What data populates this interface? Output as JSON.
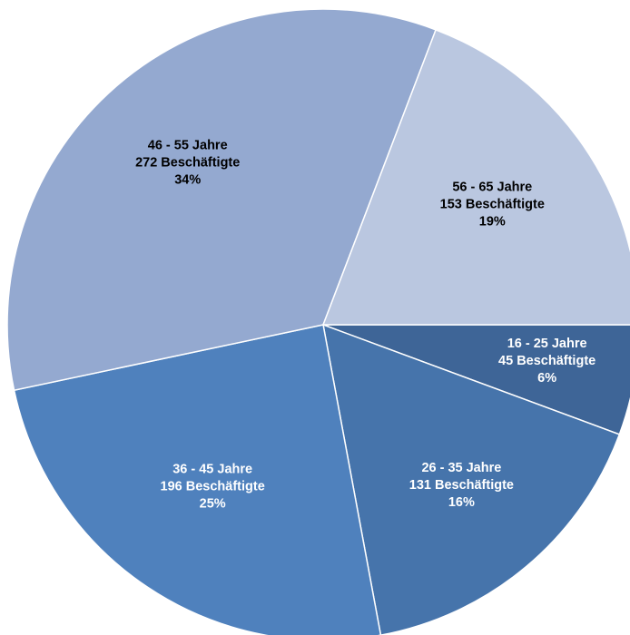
{
  "chart_data": {
    "type": "pie",
    "title": "",
    "slices": [
      {
        "category": "16 - 25 Jahre",
        "count_label": "45 Beschäftigte",
        "value": 45,
        "percent_label": "6%",
        "color": "#3e6597",
        "label_color": "#ffffff"
      },
      {
        "category": "26 - 35 Jahre",
        "count_label": "131 Beschäftigte",
        "value": 131,
        "percent_label": "16%",
        "color": "#4674ab",
        "label_color": "#ffffff"
      },
      {
        "category": "36 - 45 Jahre",
        "count_label": "196 Beschäftigte",
        "value": 196,
        "percent_label": "25%",
        "color": "#4f81bd",
        "label_color": "#ffffff"
      },
      {
        "category": "46 - 55 Jahre",
        "count_label": "272 Beschäftigte",
        "value": 272,
        "percent_label": "34%",
        "color": "#94a9d0",
        "label_color": "#000000"
      },
      {
        "category": "56 - 65 Jahre",
        "count_label": "153 Beschäftigte",
        "value": 153,
        "percent_label": "19%",
        "color": "#bac7e0",
        "label_color": "#000000"
      }
    ],
    "legend": "none"
  }
}
